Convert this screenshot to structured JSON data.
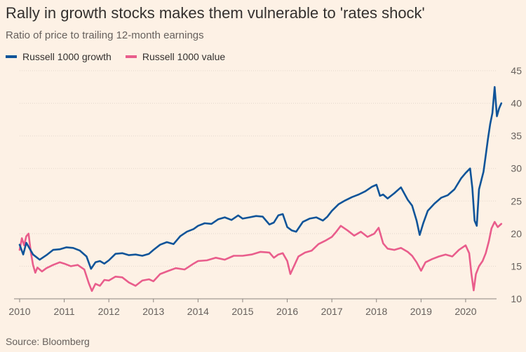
{
  "chart_data": {
    "type": "line",
    "title": "Rally in growth stocks makes them vulnerable to 'rates shock'",
    "subtitle": "Ratio of price to trailing 12-month earnings",
    "source": "Source: Bloomberg",
    "xlabel": "",
    "ylabel": "",
    "xlim": [
      2010,
      2020.85
    ],
    "ylim": [
      10,
      45
    ],
    "y_ticks": [
      10,
      15,
      20,
      25,
      30,
      35,
      40,
      45
    ],
    "x_ticks": [
      2010,
      2011,
      2012,
      2013,
      2014,
      2015,
      2016,
      2017,
      2018,
      2019,
      2020
    ],
    "grid": true,
    "legend_position": "top-left",
    "series": [
      {
        "name": "Russell 1000 growth",
        "color": "#0f5499",
        "x": [
          2010.0,
          2010.08,
          2010.15,
          2010.3,
          2010.45,
          2010.6,
          2010.75,
          2010.9,
          2011.05,
          2011.2,
          2011.35,
          2011.5,
          2011.6,
          2011.7,
          2011.8,
          2011.9,
          2012.0,
          2012.15,
          2012.3,
          2012.45,
          2012.6,
          2012.75,
          2012.9,
          2013.0,
          2013.15,
          2013.3,
          2013.45,
          2013.6,
          2013.75,
          2013.9,
          2014.0,
          2014.15,
          2014.3,
          2014.45,
          2014.6,
          2014.75,
          2014.9,
          2015.0,
          2015.15,
          2015.3,
          2015.45,
          2015.6,
          2015.7,
          2015.8,
          2015.9,
          2016.0,
          2016.1,
          2016.2,
          2016.35,
          2016.5,
          2016.65,
          2016.8,
          2016.9,
          2017.0,
          2017.15,
          2017.3,
          2017.45,
          2017.6,
          2017.75,
          2017.9,
          2018.0,
          2018.08,
          2018.15,
          2018.25,
          2018.4,
          2018.55,
          2018.7,
          2018.8,
          2018.9,
          2018.97,
          2019.05,
          2019.15,
          2019.3,
          2019.45,
          2019.6,
          2019.75,
          2019.9,
          2020.0,
          2020.1,
          2020.15,
          2020.2,
          2020.25,
          2020.3,
          2020.4,
          2020.45,
          2020.5,
          2020.55,
          2020.6,
          2020.65,
          2020.7,
          2020.75,
          2020.8
        ],
        "values": [
          18.3,
          16.8,
          18.6,
          16.8,
          16.0,
          16.7,
          17.5,
          17.6,
          17.9,
          17.8,
          17.4,
          16.5,
          14.6,
          15.6,
          15.8,
          15.4,
          15.9,
          16.9,
          17.0,
          16.7,
          16.8,
          16.6,
          16.9,
          17.5,
          18.3,
          18.7,
          18.4,
          19.6,
          20.3,
          20.7,
          21.2,
          21.6,
          21.5,
          22.2,
          22.5,
          22.1,
          22.8,
          22.3,
          22.5,
          22.7,
          22.6,
          21.4,
          21.7,
          22.8,
          23.0,
          21.0,
          20.5,
          20.3,
          21.8,
          22.3,
          22.5,
          22.0,
          22.6,
          23.5,
          24.5,
          25.1,
          25.6,
          26.0,
          26.5,
          27.2,
          27.5,
          25.8,
          26.0,
          25.4,
          26.2,
          27.1,
          25.2,
          24.3,
          22.0,
          19.8,
          21.6,
          23.5,
          24.6,
          25.5,
          25.9,
          26.8,
          28.5,
          29.3,
          30.0,
          27.0,
          22.0,
          21.2,
          26.8,
          29.5,
          32.0,
          34.5,
          36.8,
          38.5,
          42.5,
          38.0,
          39.2,
          40.0
        ]
      },
      {
        "name": "Russell 1000 value",
        "color": "#e95d8c",
        "x": [
          2010.0,
          2010.05,
          2010.1,
          2010.15,
          2010.2,
          2010.25,
          2010.3,
          2010.35,
          2010.4,
          2010.5,
          2010.6,
          2010.75,
          2010.9,
          2011.0,
          2011.15,
          2011.3,
          2011.45,
          2011.55,
          2011.62,
          2011.7,
          2011.8,
          2011.9,
          2012.0,
          2012.15,
          2012.3,
          2012.45,
          2012.6,
          2012.75,
          2012.9,
          2013.0,
          2013.15,
          2013.3,
          2013.5,
          2013.7,
          2013.9,
          2014.0,
          2014.2,
          2014.4,
          2014.6,
          2014.8,
          2015.0,
          2015.2,
          2015.4,
          2015.6,
          2015.7,
          2015.8,
          2015.9,
          2016.0,
          2016.07,
          2016.15,
          2016.25,
          2016.4,
          2016.55,
          2016.7,
          2016.85,
          2017.0,
          2017.1,
          2017.2,
          2017.35,
          2017.5,
          2017.65,
          2017.8,
          2017.95,
          2018.05,
          2018.15,
          2018.25,
          2018.4,
          2018.55,
          2018.7,
          2018.8,
          2018.9,
          2019.0,
          2019.1,
          2019.25,
          2019.4,
          2019.55,
          2019.7,
          2019.85,
          2020.0,
          2020.08,
          2020.13,
          2020.18,
          2020.23,
          2020.3,
          2020.38,
          2020.45,
          2020.52,
          2020.58,
          2020.65,
          2020.72,
          2020.8
        ],
        "values": [
          17.5,
          19.3,
          18.2,
          19.6,
          20.0,
          17.2,
          15.2,
          14.0,
          14.8,
          14.2,
          14.7,
          15.2,
          15.6,
          15.4,
          15.0,
          15.2,
          14.5,
          12.4,
          11.2,
          12.3,
          12.0,
          12.9,
          12.8,
          13.4,
          13.3,
          12.5,
          12.0,
          12.8,
          13.0,
          12.7,
          13.8,
          14.2,
          14.7,
          14.5,
          15.4,
          15.8,
          15.9,
          16.3,
          16.0,
          16.6,
          16.6,
          16.8,
          17.2,
          17.1,
          16.3,
          16.8,
          17.0,
          15.8,
          13.8,
          15.0,
          16.5,
          17.1,
          17.4,
          18.4,
          18.9,
          19.5,
          20.3,
          21.2,
          20.5,
          19.7,
          20.3,
          19.5,
          20.0,
          20.9,
          18.5,
          17.7,
          17.5,
          17.8,
          17.2,
          16.6,
          15.6,
          14.3,
          15.6,
          16.1,
          16.5,
          16.8,
          16.5,
          17.5,
          18.2,
          17.0,
          13.8,
          11.3,
          13.8,
          15.0,
          15.8,
          17.0,
          18.8,
          20.8,
          21.8,
          21.0,
          21.5
        ]
      }
    ]
  }
}
